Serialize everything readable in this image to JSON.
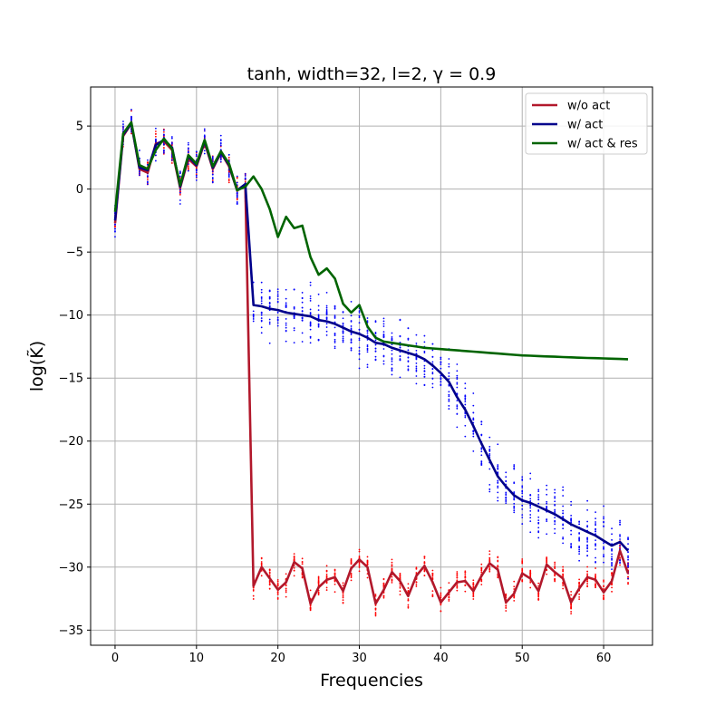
{
  "chart_data": {
    "type": "line",
    "title": "tanh, width=32, l=2, γ = 0.9",
    "xlabel": "Frequencies",
    "ylabel": "log(K̃)",
    "xlim": [
      -3,
      66
    ],
    "ylim": [
      -36.2,
      8.1
    ],
    "x_ticks": [
      0,
      10,
      20,
      30,
      40,
      50,
      60
    ],
    "y_ticks": [
      5,
      0,
      -5,
      -10,
      -15,
      -20,
      -25,
      -30,
      -35
    ],
    "grid": true,
    "legend_position": "top-right",
    "x": [
      0,
      1,
      2,
      3,
      4,
      5,
      6,
      7,
      8,
      9,
      10,
      11,
      12,
      13,
      14,
      15,
      16,
      17,
      18,
      19,
      20,
      21,
      22,
      23,
      24,
      25,
      26,
      27,
      28,
      29,
      30,
      31,
      32,
      33,
      34,
      35,
      36,
      37,
      38,
      39,
      40,
      41,
      42,
      43,
      44,
      45,
      46,
      47,
      48,
      49,
      50,
      51,
      52,
      53,
      54,
      55,
      56,
      57,
      58,
      59,
      60,
      61,
      62,
      63
    ],
    "series": [
      {
        "name": "w/o act",
        "color": "#b2182b",
        "values": [
          -2.7,
          4.2,
          5.2,
          1.6,
          1.3,
          3.6,
          3.8,
          3.1,
          0.1,
          2.4,
          1.8,
          3.7,
          1.6,
          2.9,
          1.8,
          -0.1,
          0.3,
          -31.5,
          -30.0,
          -30.9,
          -31.8,
          -31.2,
          -29.6,
          -30.1,
          -32.9,
          -31.6,
          -31.0,
          -30.8,
          -31.9,
          -30.1,
          -29.4,
          -30.0,
          -32.9,
          -31.8,
          -30.4,
          -31.1,
          -32.3,
          -30.7,
          -29.9,
          -31.2,
          -32.8,
          -32.0,
          -31.2,
          -31.1,
          -31.9,
          -30.7,
          -29.7,
          -30.2,
          -32.8,
          -32.1,
          -30.5,
          -30.9,
          -31.9,
          -29.8,
          -30.4,
          -30.9,
          -32.8,
          -31.7,
          -30.8,
          -31.0,
          -32.0,
          -31.1,
          -28.7,
          -30.5
        ],
        "scatter_spread": 0.75
      },
      {
        "name": "w/ act",
        "color": "#00008b",
        "values": [
          -2.5,
          4.3,
          5.2,
          1.7,
          1.5,
          3.5,
          3.9,
          3.3,
          0.2,
          2.6,
          1.9,
          3.8,
          1.7,
          2.9,
          1.9,
          -0.1,
          0.4,
          -9.2,
          -9.3,
          -9.5,
          -9.6,
          -9.8,
          -9.9,
          -10.0,
          -10.1,
          -10.4,
          -10.5,
          -10.7,
          -11.0,
          -11.3,
          -11.5,
          -11.8,
          -12.2,
          -12.3,
          -12.6,
          -12.8,
          -13.0,
          -13.2,
          -13.5,
          -14.0,
          -14.6,
          -15.3,
          -16.5,
          -17.5,
          -18.8,
          -20.2,
          -21.5,
          -22.8,
          -23.6,
          -24.3,
          -24.7,
          -24.9,
          -25.2,
          -25.5,
          -25.8,
          -26.2,
          -26.6,
          -26.9,
          -27.2,
          -27.5,
          -27.9,
          -28.3,
          -28.0,
          -28.7
        ],
        "scatter_spread": 1.8
      },
      {
        "name": "w/ act & res",
        "color": "#006400",
        "values": [
          -1.8,
          4.4,
          5.3,
          1.9,
          1.6,
          3.1,
          4.0,
          3.2,
          0.3,
          2.7,
          2.0,
          3.9,
          1.8,
          3.0,
          2.0,
          -0.1,
          0.2,
          1.0,
          0.0,
          -1.6,
          -3.8,
          -2.2,
          -3.1,
          -2.9,
          -5.4,
          -6.8,
          -6.3,
          -7.1,
          -9.1,
          -9.8,
          -9.2,
          -10.9,
          -11.8,
          -12.1,
          -12.2,
          -12.3,
          -12.4,
          -12.5,
          -12.6,
          -12.65,
          -12.7,
          -12.75,
          -12.8,
          -12.85,
          -12.9,
          -12.95,
          -13.0,
          -13.05,
          -13.1,
          -13.15,
          -13.2,
          -13.22,
          -13.25,
          -13.28,
          -13.3,
          -13.33,
          -13.35,
          -13.38,
          -13.4,
          -13.42,
          -13.44,
          -13.46,
          -13.48,
          -13.5
        ]
      }
    ]
  }
}
